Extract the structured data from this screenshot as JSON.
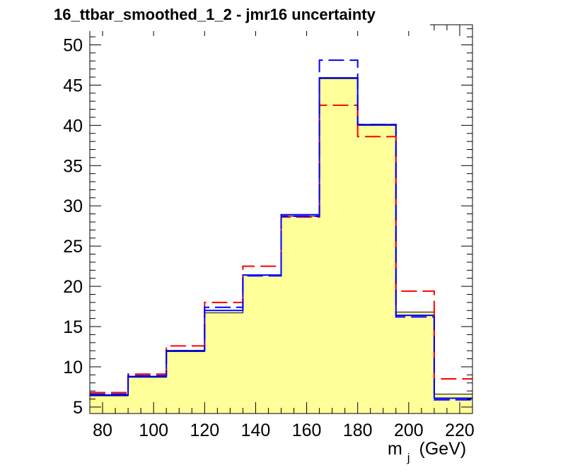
{
  "chart_data": {
    "type": "histogram",
    "title": "16_ttbar_smoothed_1_2 - jmr16 uncertainty",
    "xlabel_main": "m",
    "xlabel_sub": "j",
    "xlabel_unit": "(GeV)",
    "xlim": [
      75,
      225
    ],
    "ylim": [
      4.2,
      52.5
    ],
    "bin_edges": [
      75,
      90,
      105,
      120,
      135,
      150,
      165,
      180,
      195,
      210,
      225
    ],
    "x_ticks": [
      80,
      100,
      120,
      140,
      160,
      180,
      200,
      220
    ],
    "y_ticks": [
      5,
      10,
      15,
      20,
      25,
      30,
      35,
      40,
      45,
      50
    ],
    "grid": false,
    "legend": "none",
    "series": [
      {
        "style": "filled",
        "color": "#ffff99",
        "edge": "#000000",
        "values": [
          6.4,
          8.7,
          11.9,
          16.7,
          21.4,
          28.7,
          45.8,
          40.0,
          16.8,
          6.6
        ]
      },
      {
        "style": "solid",
        "color": "#0000ff",
        "values": [
          6.5,
          8.8,
          12.0,
          17.0,
          21.4,
          28.9,
          45.9,
          40.1,
          16.4,
          6.1
        ]
      },
      {
        "style": "dashed",
        "color": "#ff0000",
        "values": [
          6.8,
          9.1,
          12.6,
          18.0,
          22.5,
          28.6,
          42.5,
          38.6,
          19.4,
          8.5
        ]
      },
      {
        "style": "dashed",
        "color": "#0000ff",
        "values": [
          6.6,
          8.9,
          12.0,
          17.4,
          21.3,
          28.7,
          48.1,
          40.1,
          16.2,
          5.9
        ]
      }
    ]
  }
}
